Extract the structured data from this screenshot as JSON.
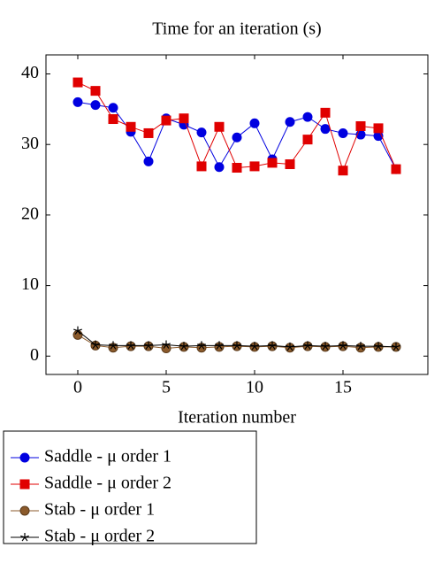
{
  "chart_data": {
    "type": "line",
    "title": "Time for an iteration (s)",
    "x_label": "Iteration number",
    "x": [
      0,
      1,
      2,
      3,
      4,
      5,
      6,
      7,
      8,
      9,
      10,
      11,
      12,
      13,
      14,
      15,
      16,
      17,
      18
    ],
    "series": [
      {
        "name": "Saddle - μ order 1",
        "color": "#0000e0",
        "marker": "circle",
        "values": [
          36.0,
          35.6,
          35.2,
          31.8,
          27.6,
          33.7,
          32.8,
          31.7,
          26.8,
          31.0,
          33.0,
          27.9,
          33.2,
          33.9,
          32.2,
          31.6,
          31.4,
          31.2,
          26.5
        ]
      },
      {
        "name": "Saddle - μ order 2",
        "color": "#e00000",
        "marker": "square",
        "values": [
          38.8,
          37.6,
          33.6,
          32.5,
          31.6,
          33.4,
          33.7,
          26.9,
          32.5,
          26.7,
          26.9,
          27.4,
          27.2,
          30.7,
          34.5,
          26.3,
          32.6,
          32.3,
          26.5
        ]
      },
      {
        "name": "Stab - μ order 1",
        "color": "#8b5a2b",
        "marker": "circle",
        "values": [
          3.0,
          1.5,
          1.2,
          1.4,
          1.4,
          1.1,
          1.3,
          1.2,
          1.3,
          1.4,
          1.3,
          1.4,
          1.2,
          1.4,
          1.3,
          1.4,
          1.2,
          1.3,
          1.3
        ]
      },
      {
        "name": "Stab - μ order 2",
        "color": "#000000",
        "marker": "star",
        "values": [
          3.6,
          1.6,
          1.5,
          1.5,
          1.5,
          1.6,
          1.4,
          1.5,
          1.5,
          1.5,
          1.4,
          1.5,
          1.3,
          1.5,
          1.4,
          1.5,
          1.4,
          1.4,
          1.3
        ]
      }
    ],
    "xlim": [
      -1.8,
      19.8
    ],
    "xticks": [
      0,
      5,
      10,
      15
    ],
    "ylim": [
      -2.6,
      42.7
    ],
    "yticks": [
      0,
      10,
      20,
      30,
      40
    ]
  }
}
